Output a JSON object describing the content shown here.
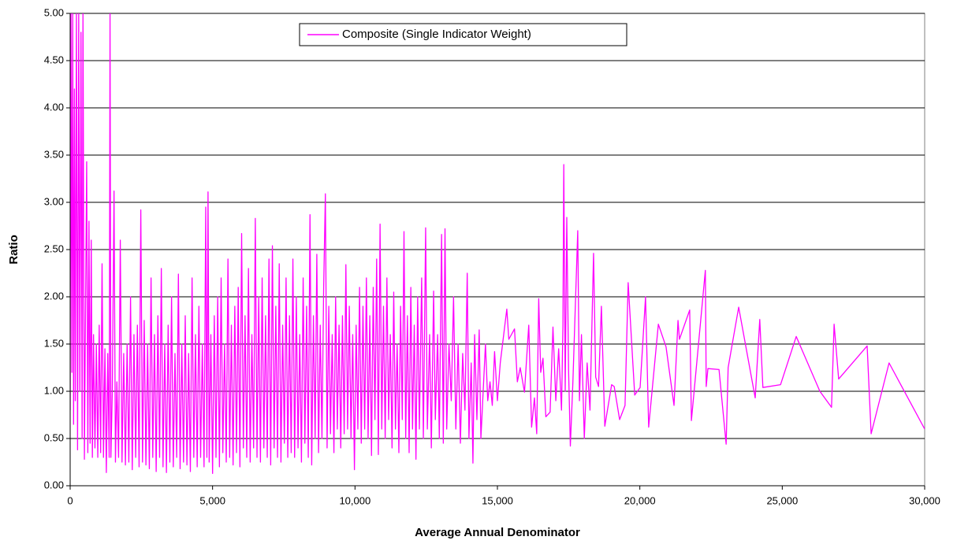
{
  "chart_data": {
    "type": "line",
    "x_label": "Average Annual Denominator",
    "y_label": "Ratio",
    "xlim": [
      0,
      30000
    ],
    "ylim": [
      0,
      5
    ],
    "xticks": [
      0,
      {
        "value": 5000,
        "label": "5,000"
      },
      {
        "value": 10000,
        "label": "10,000"
      },
      {
        "value": 15000,
        "label": "15,000"
      },
      {
        "value": 20000,
        "label": "20,000"
      },
      {
        "value": 25000,
        "label": "25,000"
      },
      {
        "value": 30000,
        "label": "30,000"
      }
    ],
    "yticks": [
      {
        "value": 0,
        "label": "0.00"
      },
      {
        "value": 0.5,
        "label": "0.50"
      },
      {
        "value": 1,
        "label": "1.00"
      },
      {
        "value": 1.5,
        "label": "1.50"
      },
      {
        "value": 2,
        "label": "2.00"
      },
      {
        "value": 2.5,
        "label": "2.50"
      },
      {
        "value": 3,
        "label": "3.00"
      },
      {
        "value": 3.5,
        "label": "3.50"
      },
      {
        "value": 4,
        "label": "4.00"
      },
      {
        "value": 4.5,
        "label": "4.50"
      },
      {
        "value": 5,
        "label": "5.00"
      }
    ],
    "grid": true,
    "legend": "top",
    "x": [
      0,
      30,
      60,
      90,
      120,
      150,
      180,
      220,
      260,
      300,
      340,
      380,
      420,
      450,
      500,
      540,
      580,
      620,
      660,
      700,
      740,
      780,
      820,
      870,
      920,
      970,
      1020,
      1070,
      1120,
      1170,
      1220,
      1270,
      1320,
      1370,
      1400,
      1430,
      1480,
      1540,
      1590,
      1640,
      1700,
      1760,
      1820,
      1880,
      1940,
      2000,
      2060,
      2120,
      2180,
      2240,
      2300,
      2360,
      2420,
      2480,
      2540,
      2600,
      2660,
      2720,
      2780,
      2840,
      2900,
      2960,
      3020,
      3080,
      3140,
      3200,
      3260,
      3320,
      3380,
      3440,
      3500,
      3560,
      3620,
      3680,
      3740,
      3800,
      3860,
      3920,
      3980,
      4040,
      4100,
      4160,
      4220,
      4280,
      4340,
      4400,
      4460,
      4520,
      4580,
      4640,
      4700,
      4760,
      4800,
      4840,
      4880,
      4940,
      5000,
      5060,
      5120,
      5180,
      5240,
      5300,
      5360,
      5420,
      5480,
      5540,
      5600,
      5660,
      5720,
      5780,
      5840,
      5900,
      5960,
      6020,
      6080,
      6140,
      6200,
      6260,
      6320,
      6380,
      6440,
      6500,
      6560,
      6620,
      6680,
      6740,
      6800,
      6860,
      6920,
      6980,
      7040,
      7100,
      7160,
      7220,
      7280,
      7340,
      7400,
      7460,
      7520,
      7580,
      7640,
      7700,
      7760,
      7820,
      7880,
      7940,
      8000,
      8060,
      8120,
      8180,
      8240,
      8300,
      8360,
      8420,
      8480,
      8540,
      8600,
      8660,
      8720,
      8780,
      8840,
      8900,
      8960,
      9020,
      9080,
      9140,
      9200,
      9260,
      9320,
      9380,
      9440,
      9500,
      9560,
      9620,
      9680,
      9740,
      9800,
      9860,
      9920,
      9980,
      10040,
      10100,
      10160,
      10220,
      10280,
      10340,
      10400,
      10460,
      10520,
      10580,
      10640,
      10700,
      10760,
      10820,
      10880,
      10940,
      11000,
      11060,
      11120,
      11180,
      11240,
      11300,
      11360,
      11420,
      11480,
      11540,
      11600,
      11660,
      11720,
      11780,
      11840,
      11900,
      11960,
      12020,
      12080,
      12140,
      12200,
      12260,
      12340,
      12400,
      12480,
      12540,
      12620,
      12680,
      12760,
      12820,
      12900,
      12960,
      13040,
      13100,
      13160,
      13220,
      13300,
      13380,
      13460,
      13540,
      13620,
      13700,
      13780,
      13860,
      13940,
      14000,
      14080,
      14140,
      14200,
      14280,
      14360,
      14420,
      14500,
      14580,
      14660,
      14740,
      14820,
      14900,
      15000,
      15100,
      15330,
      15400,
      15600,
      15700,
      15800,
      15950,
      16100,
      16200,
      16300,
      16380,
      16450,
      16520,
      16600,
      16700,
      16850,
      16950,
      17050,
      17150,
      17250,
      17300,
      17330,
      17380,
      17435,
      17500,
      17560,
      17650,
      17820,
      17880,
      17950,
      18050,
      18150,
      18250,
      18375,
      18450,
      18550,
      18650,
      18770,
      19010,
      19100,
      19290,
      19480,
      19590,
      19820,
      20010,
      20200,
      20310,
      20650,
      20920,
      21200,
      21340,
      21390,
      21750,
      21810,
      22300,
      22330,
      22390,
      22780,
      23030,
      23100,
      23470,
      24050,
      24210,
      24320,
      24940,
      25490,
      26320,
      26730,
      26820,
      26980,
      27980,
      28120,
      28750,
      30000
    ],
    "series": [
      {
        "name": "Composite (Single Indicator Weight)",
        "color": "#ff00ff",
        "values": [
          0.8,
          5,
          1.2,
          5,
          0.65,
          4.2,
          0.9,
          5,
          0.38,
          5,
          1.0,
          4.8,
          0.5,
          5,
          0.28,
          1.9,
          3.43,
          0.35,
          2.8,
          0.45,
          2.6,
          0.3,
          1.6,
          0.4,
          1.5,
          0.3,
          1.7,
          0.35,
          2.35,
          0.3,
          1.45,
          0.14,
          1.4,
          0.3,
          5,
          0.3,
          1.0,
          3.12,
          0.25,
          1.1,
          0.3,
          2.6,
          0.25,
          1.4,
          0.22,
          1.5,
          0.25,
          2.0,
          0.17,
          1.6,
          0.3,
          1.7,
          0.2,
          2.92,
          0.25,
          1.75,
          0.22,
          1.5,
          0.18,
          2.2,
          0.3,
          1.6,
          0.15,
          1.8,
          0.3,
          2.3,
          0.2,
          1.5,
          0.14,
          1.7,
          0.25,
          2.0,
          0.2,
          1.4,
          0.3,
          2.24,
          0.18,
          1.5,
          0.25,
          1.8,
          0.22,
          1.4,
          0.15,
          2.2,
          0.3,
          1.6,
          0.2,
          1.9,
          0.3,
          1.5,
          0.2,
          2.95,
          0.3,
          3.11,
          0.25,
          1.6,
          0.13,
          1.8,
          0.3,
          2.0,
          0.2,
          2.2,
          0.35,
          1.5,
          0.25,
          2.4,
          0.3,
          1.7,
          0.22,
          1.9,
          0.35,
          2.1,
          0.2,
          2.67,
          0.4,
          1.8,
          0.3,
          2.3,
          0.25,
          1.6,
          0.4,
          2.83,
          0.3,
          2.0,
          0.25,
          2.2,
          0.4,
          1.8,
          0.3,
          2.4,
          0.22,
          2.54,
          0.4,
          1.9,
          0.3,
          2.35,
          0.25,
          1.7,
          0.45,
          2.2,
          0.3,
          1.8,
          0.35,
          2.4,
          0.3,
          2.0,
          0.4,
          1.6,
          0.25,
          2.2,
          0.45,
          1.9,
          0.3,
          2.87,
          0.22,
          1.8,
          0.5,
          2.45,
          0.35,
          1.7,
          0.5,
          2.1,
          3.09,
          0.4,
          1.9,
          0.55,
          1.6,
          0.35,
          2.0,
          0.6,
          1.7,
          0.4,
          1.8,
          0.55,
          2.34,
          0.6,
          1.9,
          0.5,
          1.6,
          0.17,
          1.7,
          0.6,
          2.1,
          0.45,
          1.9,
          0.6,
          2.2,
          0.5,
          1.8,
          0.32,
          2.1,
          0.7,
          2.4,
          0.33,
          2.77,
          0.6,
          1.9,
          0.5,
          2.2,
          0.7,
          1.6,
          0.4,
          2.05,
          0.6,
          1.5,
          0.35,
          1.9,
          0.7,
          2.69,
          0.5,
          1.8,
          0.35,
          2.1,
          0.6,
          1.7,
          0.28,
          2.0,
          0.6,
          2.2,
          0.5,
          2.73,
          0.6,
          1.6,
          0.4,
          2.06,
          0.7,
          1.6,
          0.5,
          2.66,
          0.45,
          2.72,
          0.6,
          1.5,
          0.9,
          2.0,
          0.6,
          1.5,
          0.45,
          1.4,
          0.8,
          2.25,
          0.5,
          1.3,
          0.24,
          1.6,
          0.7,
          1.65,
          0.5,
          1.0,
          1.5,
          0.9,
          1.1,
          0.85,
          1.42,
          0.9,
          1.3,
          1.87,
          1.55,
          1.66,
          1.1,
          1.25,
          0.99,
          1.7,
          0.62,
          0.93,
          0.55,
          1.98,
          1.2,
          1.35,
          0.73,
          0.78,
          1.68,
          0.9,
          1.45,
          0.8,
          1.7,
          3.4,
          1.0,
          2.84,
          1.2,
          0.42,
          1.1,
          2.7,
          0.9,
          1.6,
          0.5,
          1.3,
          0.8,
          2.46,
          1.15,
          1.05,
          1.9,
          0.63,
          1.07,
          1.05,
          0.7,
          0.85,
          2.15,
          0.96,
          1.04,
          2.0,
          0.62,
          1.71,
          1.47,
          0.85,
          1.75,
          1.55,
          1.86,
          0.69,
          2.28,
          1.05,
          1.24,
          1.23,
          0.44,
          1.25,
          1.89,
          0.93,
          1.76,
          1.04,
          1.07,
          1.58,
          1.0,
          0.83,
          1.71,
          1.13,
          1.48,
          0.55,
          1.3,
          0.6
        ]
      }
    ]
  }
}
